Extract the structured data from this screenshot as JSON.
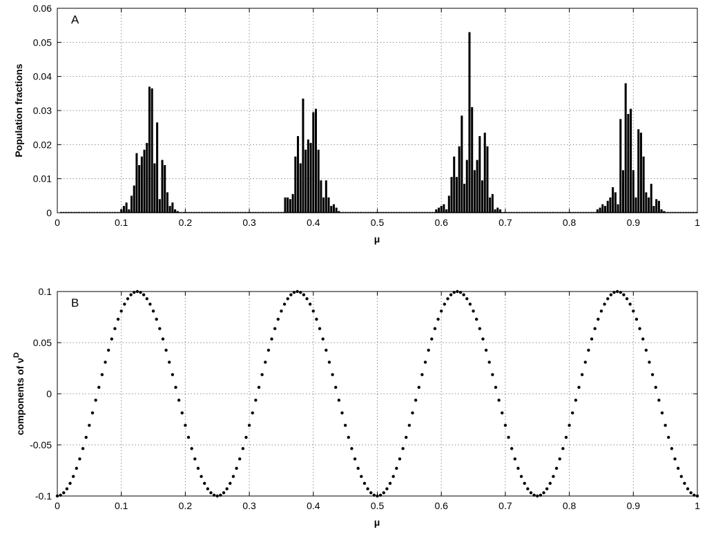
{
  "chart_data": [
    {
      "type": "bar",
      "panel_label": "A",
      "xlabel": "μ",
      "ylabel": "Population fractions",
      "xlim": [
        0,
        1
      ],
      "ylim": [
        0,
        0.06
      ],
      "xticks": [
        "0",
        "0.1",
        "0.2",
        "0.3",
        "0.4",
        "0.5",
        "0.6",
        "0.7",
        "0.8",
        "0.9",
        "1"
      ],
      "yticks": [
        "0",
        "0.01",
        "0.02",
        "0.03",
        "0.04",
        "0.05",
        "0.06"
      ],
      "grid": true,
      "bar_color": "#000000",
      "x": [
        0.1,
        0.104,
        0.108,
        0.112,
        0.116,
        0.12,
        0.124,
        0.128,
        0.132,
        0.136,
        0.14,
        0.144,
        0.148,
        0.152,
        0.156,
        0.16,
        0.164,
        0.168,
        0.172,
        0.176,
        0.18,
        0.184,
        0.188,
        0.356,
        0.36,
        0.364,
        0.368,
        0.372,
        0.376,
        0.38,
        0.384,
        0.388,
        0.392,
        0.396,
        0.4,
        0.404,
        0.408,
        0.412,
        0.416,
        0.42,
        0.424,
        0.428,
        0.432,
        0.436,
        0.44,
        0.592,
        0.596,
        0.6,
        0.604,
        0.608,
        0.612,
        0.616,
        0.62,
        0.624,
        0.628,
        0.632,
        0.636,
        0.64,
        0.644,
        0.648,
        0.652,
        0.656,
        0.66,
        0.664,
        0.668,
        0.672,
        0.676,
        0.68,
        0.684,
        0.688,
        0.692,
        0.844,
        0.848,
        0.852,
        0.856,
        0.86,
        0.864,
        0.868,
        0.872,
        0.876,
        0.88,
        0.884,
        0.888,
        0.892,
        0.896,
        0.9,
        0.904,
        0.908,
        0.912,
        0.916,
        0.92,
        0.924,
        0.928,
        0.932,
        0.936,
        0.94,
        0.944,
        0.948
      ],
      "values": [
        0.001,
        0.002,
        0.003,
        0.001,
        0.005,
        0.008,
        0.0175,
        0.014,
        0.0165,
        0.0185,
        0.0205,
        0.037,
        0.0365,
        0.0145,
        0.0265,
        0.004,
        0.0155,
        0.014,
        0.006,
        0.002,
        0.003,
        0.001,
        0.0005,
        0.0045,
        0.0045,
        0.004,
        0.0055,
        0.0165,
        0.0225,
        0.0145,
        0.0335,
        0.0185,
        0.0215,
        0.0205,
        0.0295,
        0.0305,
        0.0185,
        0.0095,
        0.0045,
        0.0095,
        0.0045,
        0.002,
        0.0025,
        0.0015,
        0.0005,
        0.001,
        0.0015,
        0.002,
        0.0025,
        0.001,
        0.005,
        0.0105,
        0.0165,
        0.0105,
        0.0195,
        0.0285,
        0.0085,
        0.0155,
        0.053,
        0.031,
        0.0125,
        0.0155,
        0.0225,
        0.0095,
        0.0235,
        0.0195,
        0.0045,
        0.0055,
        0.001,
        0.0015,
        0.001,
        0.001,
        0.0015,
        0.0025,
        0.002,
        0.0035,
        0.0045,
        0.0075,
        0.006,
        0.0025,
        0.0275,
        0.0125,
        0.038,
        0.029,
        0.0305,
        0.0125,
        0.0045,
        0.0245,
        0.0235,
        0.0165,
        0.006,
        0.0045,
        0.0085,
        0.002,
        0.004,
        0.0035,
        0.001,
        0.0005
      ]
    },
    {
      "type": "scatter",
      "panel_label": "B",
      "xlabel": "μ",
      "ylabel": "components of ν",
      "ylabel_superscript": "D",
      "xlim": [
        0,
        1
      ],
      "ylim": [
        -0.1,
        0.1
      ],
      "xticks": [
        "0",
        "0.1",
        "0.2",
        "0.3",
        "0.4",
        "0.5",
        "0.6",
        "0.7",
        "0.8",
        "0.9",
        "1"
      ],
      "yticks": [
        "-0.1",
        "-0.05",
        "0",
        "0.05",
        "0.1"
      ],
      "grid": true,
      "marker_color": "#000000",
      "description_of_points": "y = -0.1·cos(8πμ) sampled every 0.005 from 0 to 1",
      "x_start": 0,
      "x_step": 0.005,
      "x_end": 1,
      "amplitude": 0.1,
      "cycles": 4
    }
  ]
}
